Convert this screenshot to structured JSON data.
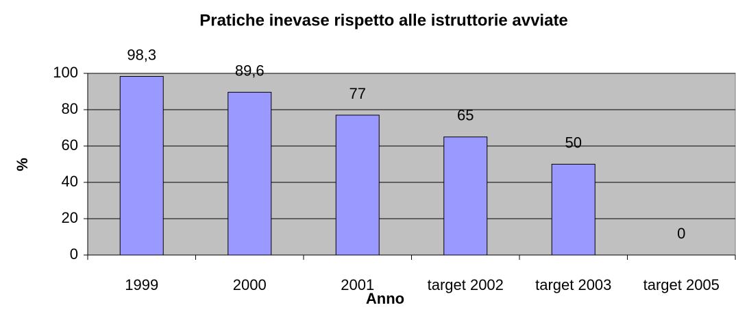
{
  "chart_data": {
    "type": "bar",
    "title": "Pratiche inevase rispetto alle istruttorie avviate",
    "xlabel": "Anno",
    "ylabel": "%",
    "categories": [
      "1999",
      "2000",
      "2001",
      "target 2002",
      "target 2003",
      "target 2005"
    ],
    "values": [
      98.3,
      89.6,
      77,
      65,
      50,
      0
    ],
    "value_labels": [
      "98,3",
      "89,6",
      "77",
      "65",
      "50",
      "0"
    ],
    "color": "#9999ff",
    "background": "#c0c0c0",
    "ylim": [
      0,
      100
    ],
    "yticks": [
      0,
      20,
      40,
      60,
      80,
      100
    ],
    "grid": true
  }
}
